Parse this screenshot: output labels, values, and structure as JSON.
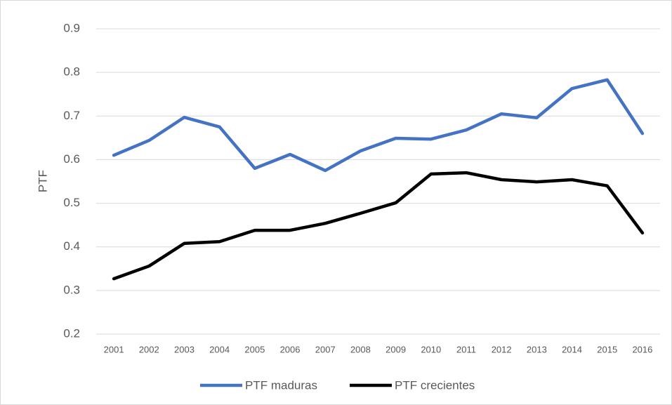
{
  "chart_data": {
    "type": "line",
    "y_label": "PTF",
    "categories": [
      "2001",
      "2002",
      "2003",
      "2004",
      "2005",
      "2006",
      "2007",
      "2008",
      "2009",
      "2010",
      "2011",
      "2012",
      "2013",
      "2014",
      "2015",
      "2016"
    ],
    "series": [
      {
        "name": "PTF maduras",
        "color": "#4472c4",
        "values": [
          0.61,
          0.644,
          0.697,
          0.675,
          0.58,
          0.612,
          0.575,
          0.62,
          0.649,
          0.647,
          0.668,
          0.705,
          0.696,
          0.763,
          0.783,
          0.66
        ]
      },
      {
        "name": "PTF crecientes",
        "color": "#000000",
        "values": [
          0.327,
          0.356,
          0.408,
          0.412,
          0.438,
          0.438,
          0.454,
          0.477,
          0.501,
          0.567,
          0.57,
          0.554,
          0.549,
          0.554,
          0.54,
          0.432
        ]
      }
    ],
    "ylim": [
      0.2,
      0.9
    ],
    "yticks": [
      0.2,
      0.3,
      0.4,
      0.5,
      0.6,
      0.7,
      0.8,
      0.9
    ],
    "grid": true,
    "legend": "bottom"
  }
}
